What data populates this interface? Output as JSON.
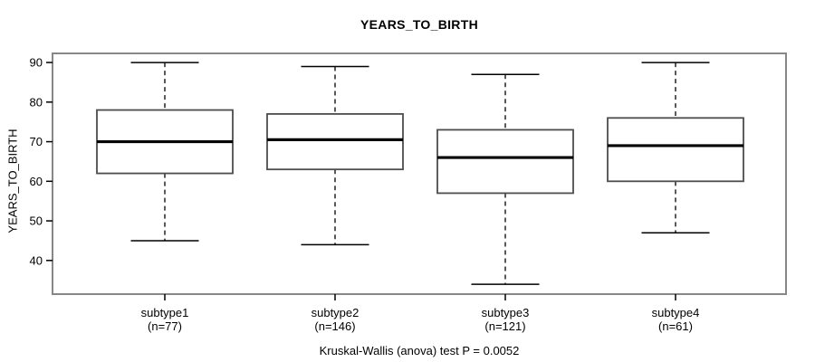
{
  "figure": {
    "title": "YEARS_TO_BIRTH",
    "ylabel": "YEARS_TO_BIRTH",
    "caption": "Kruskal-Wallis (anova) test P = 0.0052"
  },
  "chart_data": {
    "type": "boxplot",
    "title": "YEARS_TO_BIRTH",
    "xlabel": "",
    "ylabel": "YEARS_TO_BIRTH",
    "caption": "Kruskal-Wallis (anova) test P = 0.0052",
    "ylim": [
      31.5,
      92.3
    ],
    "yticks": [
      40,
      50,
      60,
      70,
      80,
      90
    ],
    "grid": false,
    "legend": "none",
    "categories": [
      "subtype1",
      "subtype2",
      "subtype3",
      "subtype4"
    ],
    "category_sublabels": [
      "(n=77)",
      "(n=146)",
      "(n=121)",
      "(n=61)"
    ],
    "groups": [
      {
        "label": "subtype1",
        "n": 77,
        "whisker_low": 45,
        "q1": 62,
        "median": 70,
        "q3": 78,
        "whisker_high": 90,
        "outliers": []
      },
      {
        "label": "subtype2",
        "n": 146,
        "whisker_low": 44,
        "q1": 63,
        "median": 70.5,
        "q3": 77,
        "whisker_high": 89,
        "outliers": []
      },
      {
        "label": "subtype3",
        "n": 121,
        "whisker_low": 34,
        "q1": 57,
        "median": 66,
        "q3": 73,
        "whisker_high": 87,
        "outliers": []
      },
      {
        "label": "subtype4",
        "n": 61,
        "whisker_low": 47,
        "q1": 60,
        "median": 69,
        "q3": 76,
        "whisker_high": 90,
        "outliers": []
      }
    ],
    "colors": {
      "background": "#ffffff",
      "frame": "#878787",
      "box_border": "#4d4d4d",
      "box_fill": "#ffffff",
      "median": "#000000",
      "whisker": "#000000",
      "text": "#000000"
    }
  }
}
